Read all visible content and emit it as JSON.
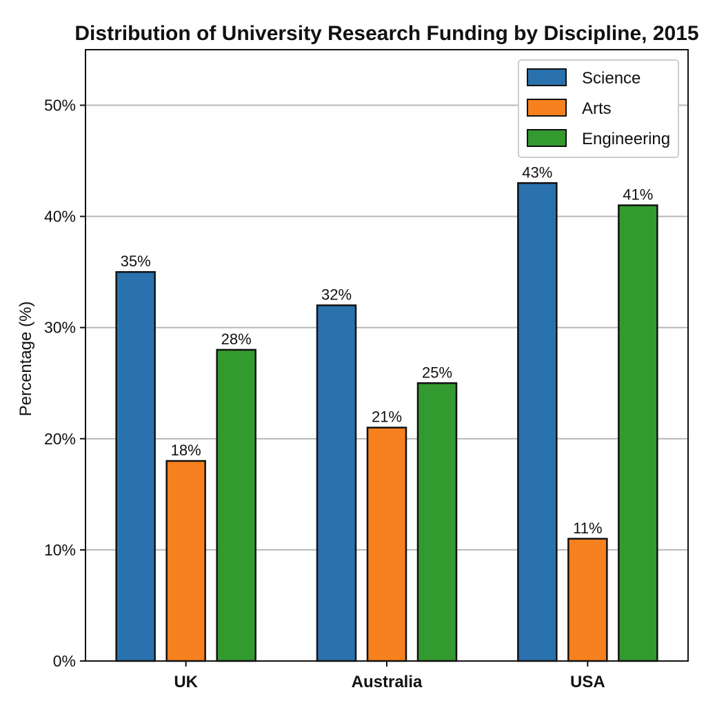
{
  "chart_data": {
    "type": "bar",
    "title": "Distribution of University Research Funding by Discipline, 2015",
    "xlabel": "",
    "ylabel": "Percentage (%)",
    "categories": [
      "UK",
      "Australia",
      "USA"
    ],
    "series": [
      {
        "name": "Science",
        "values": [
          35,
          32,
          43
        ],
        "color": "#2a72ad"
      },
      {
        "name": "Arts",
        "values": [
          18,
          21,
          11
        ],
        "color": "#f7811e"
      },
      {
        "name": "Engineering",
        "values": [
          28,
          25,
          41
        ],
        "color": "#339a2f"
      }
    ],
    "value_labels": [
      [
        "35%",
        "32%",
        "43%"
      ],
      [
        "18%",
        "21%",
        "11%"
      ],
      [
        "28%",
        "25%",
        "41%"
      ]
    ],
    "ylim": [
      0,
      55
    ],
    "yticks": [
      0,
      10,
      20,
      30,
      40,
      50
    ],
    "ytick_labels": [
      "0%",
      "10%",
      "20%",
      "30%",
      "40%",
      "50%"
    ],
    "grid": true,
    "legend_position": "top-right"
  }
}
